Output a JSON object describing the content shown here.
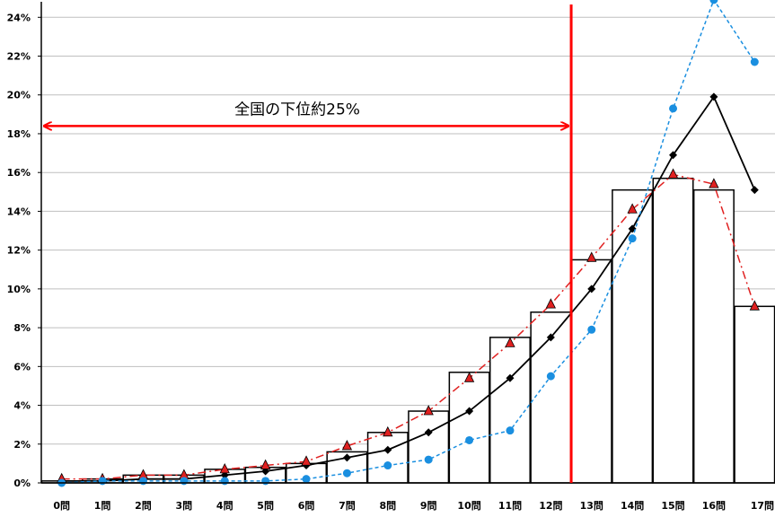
{
  "chart_data": {
    "type": "bar",
    "categories": [
      "0問",
      "1問",
      "2問",
      "3問",
      "4問",
      "5問",
      "6問",
      "7問",
      "8問",
      "9問",
      "10問",
      "11問",
      "12問",
      "13問",
      "14問",
      "15問",
      "16問",
      "17問"
    ],
    "y_tick_labels": [
      "0%",
      "2%",
      "4%",
      "6%",
      "8%",
      "10%",
      "12%",
      "14%",
      "16%",
      "18%",
      "20%",
      "22%",
      "24%"
    ],
    "ylim": [
      0,
      24.8
    ],
    "grid": true,
    "bar_values": [
      0.1,
      0.2,
      0.4,
      0.4,
      0.7,
      0.8,
      1.0,
      1.6,
      2.6,
      3.7,
      5.7,
      7.5,
      8.8,
      11.5,
      15.1,
      15.7,
      15.1,
      9.1
    ],
    "series": [
      {
        "values": [
          0.1,
          0.1,
          0.2,
          0.2,
          0.4,
          0.6,
          0.9,
          1.3,
          1.7,
          2.6,
          3.7,
          5.4,
          7.5,
          10.0,
          13.1,
          16.9,
          19.9,
          15.1
        ],
        "color": "#000000",
        "marker": "diamond",
        "line": "solid"
      },
      {
        "values": [
          0.2,
          0.2,
          0.4,
          0.4,
          0.7,
          0.9,
          1.1,
          1.9,
          2.6,
          3.7,
          5.4,
          7.2,
          9.2,
          11.6,
          14.1,
          15.9,
          15.4,
          9.1
        ],
        "color": "#e02020",
        "marker": "triangle",
        "line": "dashdot"
      },
      {
        "values": [
          0.0,
          0.1,
          0.1,
          0.1,
          0.1,
          0.1,
          0.2,
          0.5,
          0.9,
          1.2,
          2.2,
          2.7,
          5.5,
          7.9,
          12.6,
          19.3,
          24.9,
          21.7
        ],
        "color": "#1a8fe0",
        "marker": "circle",
        "line": "dashed"
      }
    ],
    "cutoff_line_after_category": "12問",
    "annotation": "全国の下位約25%",
    "colors": {
      "bars": "#ffffff",
      "bar_border": "#000000",
      "cutoff": "#ff0000",
      "arrow": "#ff0000",
      "grid": "#bfbfbf"
    }
  }
}
